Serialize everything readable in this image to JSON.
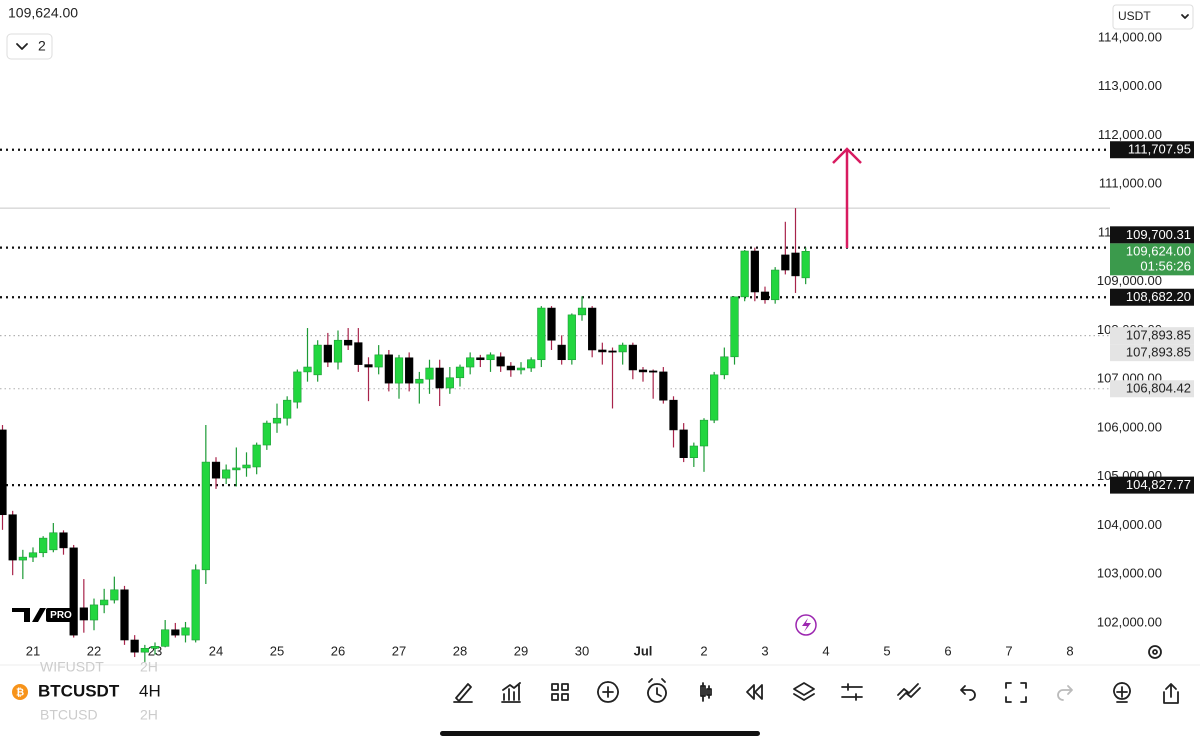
{
  "header": {
    "indicator_count": "2",
    "currency": "USDT",
    "logo": "PRO"
  },
  "symbol_bar": {
    "prev_symbol": "WIFUSDT",
    "prev_interval": "2H",
    "symbol": "BTCUSDT",
    "interval": "4H",
    "next_symbol": "BTCUSD",
    "next_interval": "2H"
  },
  "chart_data": {
    "type": "candlestick",
    "categories": [
      null,
      null,
      null,
      "21",
      null,
      null,
      null,
      null,
      null,
      "22",
      null,
      null,
      null,
      null,
      null,
      "23",
      null,
      null,
      null,
      null,
      null,
      "24",
      null,
      null,
      null,
      null,
      null,
      "25",
      null,
      null,
      null,
      null,
      null,
      "26",
      null,
      null,
      null,
      null,
      null,
      "27",
      null,
      null,
      null,
      null,
      null,
      "28",
      null,
      null,
      null,
      null,
      null,
      "29",
      null,
      null,
      null,
      null,
      null,
      "30",
      null,
      null,
      null,
      null,
      null,
      "Jul",
      null,
      null,
      null,
      null,
      null,
      "2",
      null,
      null,
      null,
      null,
      null,
      "3",
      null,
      null,
      null,
      null,
      null,
      "4",
      null,
      null,
      null,
      null,
      null,
      "5",
      null,
      null,
      null,
      null,
      null,
      "6",
      null,
      null,
      null,
      null,
      null,
      "7",
      null,
      null,
      null,
      null,
      null,
      "8"
    ],
    "open": [
      105960,
      104220,
      103290,
      103350,
      103440,
      103500,
      103850,
      103540,
      102310,
      102060,
      102370,
      102470,
      102680,
      101650,
      101400,
      101480,
      101520,
      101860,
      101750,
      101650,
      103090,
      105300,
      104970,
      105140,
      105180,
      105200,
      105650,
      106100,
      106200,
      106530,
      107150,
      107090,
      107700,
      107350,
      107800,
      107750,
      107300,
      107250,
      107500,
      106920,
      107440,
      106920,
      107000,
      107230,
      106820,
      107030,
      107250,
      107440,
      107400,
      107460,
      107270,
      107190,
      107230,
      107400,
      108460,
      107700,
      107400,
      108320,
      108460,
      107600,
      107580,
      107560,
      107700,
      107190,
      107170,
      107150,
      106570,
      105960,
      105390,
      105630,
      106160,
      107090,
      107460,
      108690,
      109630,
      108790,
      108630,
      109550,
      109590,
      109080,
      null,
      null,
      null,
      null,
      null,
      null,
      null,
      null,
      null,
      null,
      null,
      null,
      null,
      null,
      null,
      null,
      null,
      null,
      null,
      null,
      null,
      null,
      null,
      null,
      null,
      null
    ],
    "high": [
      106060,
      104300,
      103500,
      103550,
      103780,
      104050,
      103900,
      103600,
      102900,
      102500,
      102700,
      102950,
      102760,
      101750,
      101550,
      101600,
      102060,
      102000,
      102020,
      103200,
      106060,
      105400,
      105250,
      105600,
      105500,
      105700,
      106150,
      106500,
      106650,
      107200,
      108050,
      107800,
      107950,
      108000,
      108050,
      108050,
      107450,
      107700,
      107600,
      107500,
      107550,
      107150,
      107400,
      107400,
      107250,
      107300,
      107550,
      107500,
      107550,
      107550,
      107350,
      107350,
      107450,
      108500,
      108500,
      107900,
      108350,
      108700,
      108500,
      107750,
      107650,
      107750,
      107750,
      107250,
      107200,
      107250,
      106650,
      106100,
      105700,
      106200,
      107150,
      107650,
      108700,
      109650,
      109700,
      108900,
      109300,
      110230,
      110510,
      109700,
      null,
      null,
      null,
      null,
      null,
      null,
      null,
      null,
      null,
      null,
      null,
      null,
      null,
      null,
      null,
      null,
      null,
      null,
      null,
      null,
      null,
      null,
      null,
      null,
      null,
      null
    ],
    "low": [
      103910,
      102980,
      102900,
      103250,
      103350,
      103450,
      103400,
      101700,
      101800,
      101850,
      102200,
      102400,
      101550,
      101300,
      101200,
      101350,
      101500,
      101700,
      101600,
      101600,
      102800,
      104750,
      104850,
      104800,
      105000,
      105050,
      105550,
      105900,
      106050,
      106400,
      106950,
      106950,
      107250,
      107200,
      107600,
      107150,
      106550,
      107100,
      106750,
      106600,
      106750,
      106500,
      106700,
      106450,
      106700,
      106850,
      107100,
      107250,
      107150,
      107150,
      107050,
      107100,
      107150,
      107250,
      107600,
      107300,
      107300,
      108200,
      107450,
      107300,
      106400,
      107300,
      107000,
      106950,
      106600,
      106500,
      105600,
      105300,
      105200,
      105100,
      106100,
      107000,
      107300,
      108600,
      108600,
      108550,
      108550,
      109150,
      108770,
      108950,
      null,
      null,
      null,
      null,
      null,
      null,
      null,
      null,
      null,
      null,
      null,
      null,
      null,
      null,
      null,
      null,
      null,
      null,
      null,
      null,
      null,
      null,
      null,
      null,
      null,
      null
    ],
    "close": [
      104220,
      103290,
      103350,
      103440,
      103740,
      103850,
      103540,
      101750,
      102060,
      102370,
      102470,
      102680,
      101650,
      101400,
      101480,
      101520,
      101860,
      101750,
      101900,
      103090,
      105300,
      104970,
      105140,
      105180,
      105240,
      105650,
      106100,
      106200,
      106570,
      107150,
      107250,
      107700,
      107350,
      107800,
      107700,
      107300,
      107250,
      107500,
      106920,
      107440,
      106920,
      107000,
      107230,
      106820,
      107030,
      107250,
      107440,
      107400,
      107500,
      107270,
      107190,
      107230,
      107400,
      108460,
      107800,
      107400,
      108320,
      108460,
      107600,
      107560,
      107560,
      107700,
      107190,
      107150,
      107150,
      106570,
      105960,
      105390,
      105630,
      106160,
      107090,
      107460,
      108690,
      109630,
      108790,
      108630,
      109240,
      109240,
      109120,
      109624,
      null,
      null,
      null,
      null,
      null,
      null,
      null,
      null,
      null,
      null,
      null,
      null,
      null,
      null,
      null,
      null,
      null,
      null,
      null,
      null,
      null,
      null,
      null,
      null,
      null,
      null
    ],
    "up_color": "#22d63f",
    "down_color": "#000000",
    "up_wick": "#1c9a35",
    "down_wick": "#a8234a",
    "ylim": [
      101650,
      114780
    ],
    "yticks": [
      {
        "value": 102000,
        "label": "102,000.00"
      },
      {
        "value": 103000,
        "label": "103,000.00"
      },
      {
        "value": 104000,
        "label": "104,000.00"
      },
      {
        "value": 105000,
        "label": "105,000.00"
      },
      {
        "value": 106000,
        "label": "106,000.00"
      },
      {
        "value": 107000,
        "label": "107,000.00"
      },
      {
        "value": 108000,
        "label": "108,000.00"
      },
      {
        "value": 109000,
        "label": "109,000.00"
      },
      {
        "value": 110000,
        "label": "110,000.00"
      },
      {
        "value": 111000,
        "label": "111,000.00"
      },
      {
        "value": 112000,
        "label": "112,000.00"
      },
      {
        "value": 113000,
        "label": "113,000.00"
      },
      {
        "value": 114000,
        "label": "114,000.00"
      }
    ],
    "grid": false,
    "hlines": [
      {
        "value": 111707.95,
        "label": "111,707.95",
        "color": "#111111",
        "style": "dotted"
      },
      {
        "value": 110510,
        "color": "#c8c8c8",
        "style": "solid"
      },
      {
        "value": 109700.31,
        "label": "109,700.31",
        "color": "#111111",
        "style": "dotted"
      },
      {
        "value": 108682.2,
        "label": "108,682.20",
        "color": "#111111",
        "style": "dotted"
      },
      {
        "value": 107893.85,
        "label": "107,893.85",
        "color": "#b0b0b0",
        "style": "dotted"
      },
      {
        "value": 107893.85,
        "label": "107,893.85",
        "color": "#b0b0b0",
        "style": "dotted"
      },
      {
        "value": 106804.42,
        "label": "106,804.42",
        "color": "#b0b0b0",
        "style": "dotted"
      },
      {
        "value": 104827.77,
        "label": "104,827.77",
        "color": "#111111",
        "style": "dotted"
      }
    ],
    "last": {
      "value": 109624,
      "label": "109,624.00",
      "timer": "01:56:26",
      "color": "#3b9a4c"
    }
  }
}
